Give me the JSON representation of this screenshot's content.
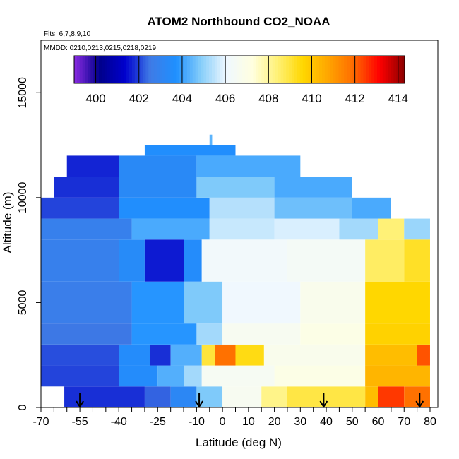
{
  "chart_data": {
    "type": "heatmap",
    "title": "ATOM2 Northbound CO2_NOAA",
    "notes": [
      "Flts: 6,7,8,9,10",
      "MMDD: 0210,0213,0215,0218,0219"
    ],
    "xlabel": "Latitude (deg N)",
    "ylabel": "Altitude (m)",
    "xlim": [
      -70,
      83
    ],
    "ylim": [
      0,
      17500
    ],
    "x_ticks": [
      -70,
      -55,
      -40,
      -25,
      -10,
      0,
      10,
      20,
      30,
      40,
      50,
      60,
      70,
      80
    ],
    "x_minor_ticks": [
      -65,
      -60,
      -50,
      -45,
      -35,
      -30,
      -20,
      -15,
      -5,
      5,
      15,
      25,
      35,
      45,
      55,
      65,
      75
    ],
    "y_ticks": [
      0,
      5000,
      10000,
      15000
    ],
    "colorbar": {
      "range": [
        399,
        414.3
      ],
      "ticks": [
        400,
        402,
        404,
        406,
        408,
        410,
        412,
        414
      ],
      "colors": [
        "#8a2be2",
        "#00008b",
        "#0000cd",
        "#3f7be6",
        "#1e90ff",
        "#87cefa",
        "#f0f8ff",
        "#ffffe0",
        "#fff176",
        "#ffd700",
        "#ffa500",
        "#ff6a00",
        "#ff0000",
        "#8b0000"
      ]
    },
    "arrows_lat": [
      -55,
      -9,
      39,
      76
    ],
    "cells": [
      {
        "lat": [
          -61,
          -30
        ],
        "alt": [
          0,
          1000
        ],
        "co2": 401.8
      },
      {
        "lat": [
          -30,
          -20
        ],
        "alt": [
          0,
          1000
        ],
        "co2": 402.3
      },
      {
        "lat": [
          -20,
          -10
        ],
        "alt": [
          0,
          1000
        ],
        "co2": 403.2
      },
      {
        "lat": [
          -10,
          0
        ],
        "alt": [
          0,
          1000
        ],
        "co2": 404.8
      },
      {
        "lat": [
          0,
          15
        ],
        "alt": [
          0,
          1000
        ],
        "co2": 406.6
      },
      {
        "lat": [
          15,
          25
        ],
        "alt": [
          0,
          1000
        ],
        "co2": 408.2
      },
      {
        "lat": [
          25,
          55
        ],
        "alt": [
          0,
          1000
        ],
        "co2": 408.9
      },
      {
        "lat": [
          55,
          60
        ],
        "alt": [
          0,
          1000
        ],
        "co2": 410.2
      },
      {
        "lat": [
          60,
          70
        ],
        "alt": [
          0,
          1000
        ],
        "co2": 412.5
      },
      {
        "lat": [
          70,
          80
        ],
        "alt": [
          0,
          1000
        ],
        "co2": 411.8
      },
      {
        "lat": [
          -70,
          -40
        ],
        "alt": [
          1000,
          2000
        ],
        "co2": 402.0
      },
      {
        "lat": [
          -40,
          -25
        ],
        "alt": [
          1000,
          2000
        ],
        "co2": 403.5
      },
      {
        "lat": [
          -25,
          -15
        ],
        "alt": [
          1000,
          2000
        ],
        "co2": 404.3
      },
      {
        "lat": [
          -15,
          -8
        ],
        "alt": [
          1000,
          2000
        ],
        "co2": 405.2
      },
      {
        "lat": [
          -8,
          20
        ],
        "alt": [
          1000,
          2000
        ],
        "co2": 406.5
      },
      {
        "lat": [
          20,
          55
        ],
        "alt": [
          1000,
          2000
        ],
        "co2": 407.0
      },
      {
        "lat": [
          55,
          80
        ],
        "alt": [
          1000,
          2000
        ],
        "co2": 410.4
      },
      {
        "lat": [
          -70,
          -40
        ],
        "alt": [
          2000,
          3000
        ],
        "co2": 402.1
      },
      {
        "lat": [
          -40,
          -28
        ],
        "alt": [
          2000,
          3000
        ],
        "co2": 403.5
      },
      {
        "lat": [
          -28,
          -20
        ],
        "alt": [
          2000,
          3000
        ],
        "co2": 401.8
      },
      {
        "lat": [
          -20,
          -8
        ],
        "alt": [
          2000,
          3000
        ],
        "co2": 404.3
      },
      {
        "lat": [
          -8,
          -3
        ],
        "alt": [
          2000,
          3000
        ],
        "co2": 409.0
      },
      {
        "lat": [
          -3,
          5
        ],
        "alt": [
          2000,
          3000
        ],
        "co2": 411.8
      },
      {
        "lat": [
          5,
          16
        ],
        "alt": [
          2000,
          3000
        ],
        "co2": 409.4
      },
      {
        "lat": [
          16,
          55
        ],
        "alt": [
          2000,
          3000
        ],
        "co2": 406.8
      },
      {
        "lat": [
          55,
          75
        ],
        "alt": [
          2000,
          3000
        ],
        "co2": 410.2
      },
      {
        "lat": [
          75,
          80
        ],
        "alt": [
          2000,
          3000
        ],
        "co2": 412.2
      },
      {
        "lat": [
          -70,
          -35
        ],
        "alt": [
          3000,
          4000
        ],
        "co2": 402.5
      },
      {
        "lat": [
          -35,
          -10
        ],
        "alt": [
          3000,
          4000
        ],
        "co2": 403.8
      },
      {
        "lat": [
          -10,
          0
        ],
        "alt": [
          3000,
          4000
        ],
        "co2": 405.2
      },
      {
        "lat": [
          0,
          30
        ],
        "alt": [
          3000,
          4000
        ],
        "co2": 406.6
      },
      {
        "lat": [
          30,
          55
        ],
        "alt": [
          3000,
          4000
        ],
        "co2": 407.0
      },
      {
        "lat": [
          55,
          80
        ],
        "alt": [
          3000,
          4000
        ],
        "co2": 409.7
      },
      {
        "lat": [
          -70,
          -35
        ],
        "alt": [
          4000,
          6000
        ],
        "co2": 402.7
      },
      {
        "lat": [
          -35,
          -15
        ],
        "alt": [
          4000,
          6000
        ],
        "co2": 403.8
      },
      {
        "lat": [
          -15,
          0
        ],
        "alt": [
          4000,
          6000
        ],
        "co2": 404.8
      },
      {
        "lat": [
          0,
          30
        ],
        "alt": [
          4000,
          6000
        ],
        "co2": 406.1
      },
      {
        "lat": [
          30,
          55
        ],
        "alt": [
          4000,
          6000
        ],
        "co2": 406.8
      },
      {
        "lat": [
          55,
          80
        ],
        "alt": [
          4000,
          6000
        ],
        "co2": 409.6
      },
      {
        "lat": [
          -70,
          -40
        ],
        "alt": [
          6000,
          8000
        ],
        "co2": 402.8
      },
      {
        "lat": [
          -40,
          -30
        ],
        "alt": [
          6000,
          8000
        ],
        "co2": 403.4
      },
      {
        "lat": [
          -30,
          -15
        ],
        "alt": [
          6000,
          8000
        ],
        "co2": 401.6
      },
      {
        "lat": [
          -15,
          -8
        ],
        "alt": [
          6000,
          8000
        ],
        "co2": 403.5
      },
      {
        "lat": [
          -8,
          25
        ],
        "alt": [
          6000,
          8000
        ],
        "co2": 406.2
      },
      {
        "lat": [
          25,
          55
        ],
        "alt": [
          6000,
          8000
        ],
        "co2": 406.4
      },
      {
        "lat": [
          55,
          70
        ],
        "alt": [
          6000,
          8000
        ],
        "co2": 408.6
      },
      {
        "lat": [
          70,
          80
        ],
        "alt": [
          6000,
          8000
        ],
        "co2": 409.2
      },
      {
        "lat": [
          -70,
          -35
        ],
        "alt": [
          8000,
          9000
        ],
        "co2": 402.8
      },
      {
        "lat": [
          -35,
          -5
        ],
        "alt": [
          8000,
          9000
        ],
        "co2": 404.2
      },
      {
        "lat": [
          -5,
          20
        ],
        "alt": [
          8000,
          9000
        ],
        "co2": 405.6
      },
      {
        "lat": [
          20,
          45
        ],
        "alt": [
          8000,
          9000
        ],
        "co2": 405.8
      },
      {
        "lat": [
          45,
          60
        ],
        "alt": [
          8000,
          9000
        ],
        "co2": 405.2
      },
      {
        "lat": [
          60,
          70
        ],
        "alt": [
          8000,
          9000
        ],
        "co2": 408.4
      },
      {
        "lat": [
          70,
          80
        ],
        "alt": [
          8000,
          9000
        ],
        "co2": 405.1
      },
      {
        "lat": [
          -70,
          -40
        ],
        "alt": [
          9000,
          10000
        ],
        "co2": 402.0
      },
      {
        "lat": [
          -40,
          -5
        ],
        "alt": [
          9000,
          10000
        ],
        "co2": 403.6
      },
      {
        "lat": [
          -5,
          20
        ],
        "alt": [
          9000,
          10000
        ],
        "co2": 405.4
      },
      {
        "lat": [
          20,
          50
        ],
        "alt": [
          9000,
          10000
        ],
        "co2": 404.6
      },
      {
        "lat": [
          50,
          65
        ],
        "alt": [
          9000,
          10000
        ],
        "co2": 404.2
      },
      {
        "lat": [
          -65,
          -40
        ],
        "alt": [
          10000,
          11000
        ],
        "co2": 401.8
      },
      {
        "lat": [
          -40,
          -10
        ],
        "alt": [
          10000,
          11000
        ],
        "co2": 403.3
      },
      {
        "lat": [
          -10,
          20
        ],
        "alt": [
          10000,
          11000
        ],
        "co2": 404.8
      },
      {
        "lat": [
          20,
          50
        ],
        "alt": [
          10000,
          11000
        ],
        "co2": 404.2
      },
      {
        "lat": [
          -60,
          -40
        ],
        "alt": [
          11000,
          12000
        ],
        "co2": 401.7
      },
      {
        "lat": [
          -40,
          -10
        ],
        "alt": [
          11000,
          12000
        ],
        "co2": 403.3
      },
      {
        "lat": [
          -10,
          30
        ],
        "alt": [
          11000,
          12000
        ],
        "co2": 404.2
      },
      {
        "lat": [
          -30,
          5
        ],
        "alt": [
          12000,
          12500
        ],
        "co2": 403.6
      },
      {
        "lat": [
          -5,
          -4
        ],
        "alt": [
          12500,
          13000
        ],
        "co2": 404.4
      }
    ]
  }
}
